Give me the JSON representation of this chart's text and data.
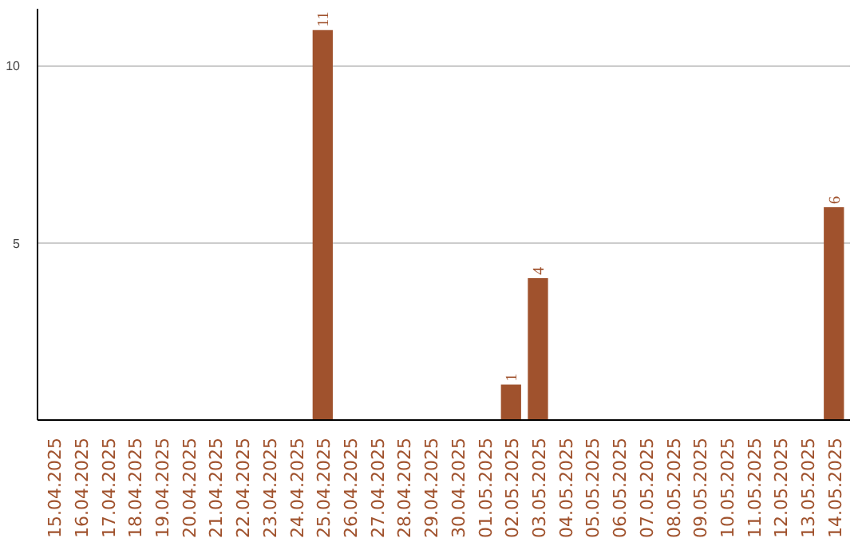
{
  "chart_data": {
    "type": "bar",
    "categories": [
      "15.04.2025",
      "16.04.2025",
      "17.04.2025",
      "18.04.2025",
      "19.04.2025",
      "20.04.2025",
      "21.04.2025",
      "22.04.2025",
      "23.04.2025",
      "24.04.2025",
      "25.04.2025",
      "26.04.2025",
      "27.04.2025",
      "28.04.2025",
      "29.04.2025",
      "30.04.2025",
      "01.05.2025",
      "02.05.2025",
      "03.05.2025",
      "04.05.2025",
      "05.05.2025",
      "06.05.2025",
      "07.05.2025",
      "08.05.2025",
      "09.05.2025",
      "10.05.2025",
      "11.05.2025",
      "12.05.2025",
      "13.05.2025",
      "14.05.2025"
    ],
    "values": [
      0,
      0,
      0,
      0,
      0,
      0,
      0,
      0,
      0,
      0,
      11,
      0,
      0,
      0,
      0,
      0,
      0,
      1,
      4,
      0,
      0,
      0,
      0,
      0,
      0,
      0,
      0,
      0,
      0,
      6
    ],
    "value_labels": [
      null,
      null,
      null,
      null,
      null,
      null,
      null,
      null,
      null,
      null,
      "11",
      null,
      null,
      null,
      null,
      null,
      null,
      "1",
      "4",
      null,
      null,
      null,
      null,
      null,
      null,
      null,
      null,
      null,
      null,
      "6"
    ],
    "color": "#a0522d",
    "ylim": [
      0,
      11.6
    ],
    "yticks": [
      5,
      10
    ],
    "grid": "y"
  }
}
